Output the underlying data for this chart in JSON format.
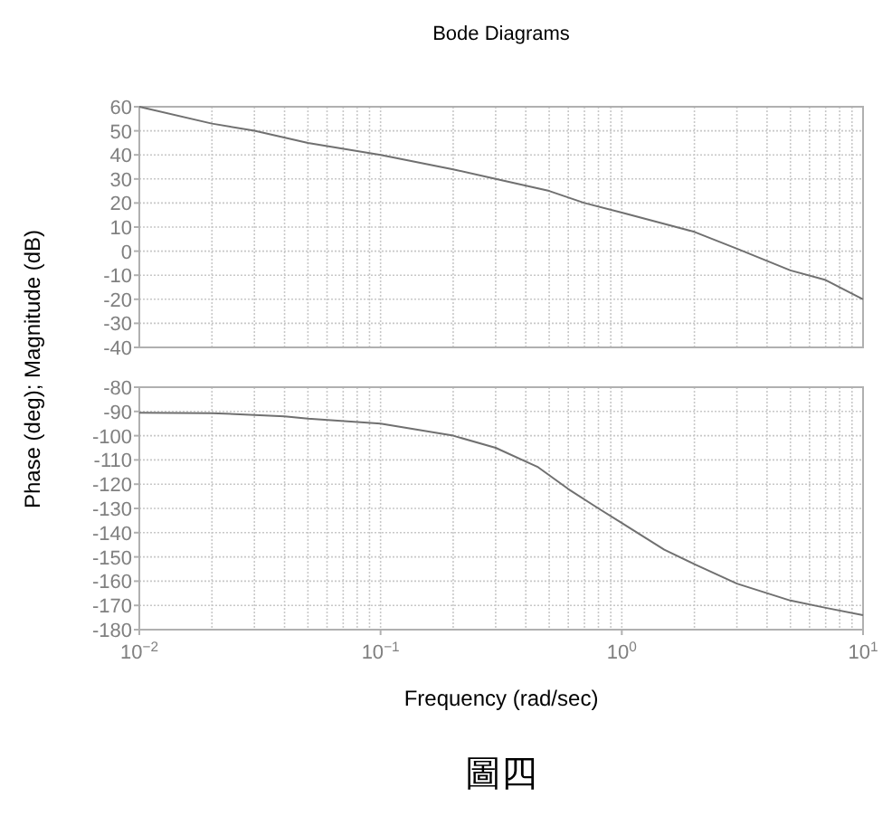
{
  "chart_data": [
    {
      "type": "line",
      "title": "Bode Diagrams",
      "ylabel": "Phase (deg); Magnitude (dB)",
      "log": "x",
      "xlim": [
        0.01,
        10
      ],
      "ylim": [
        -40,
        60
      ],
      "yticks": [
        -40,
        -30,
        -20,
        -10,
        0,
        10,
        20,
        30,
        40,
        50,
        60
      ],
      "tick_labels": "y",
      "grid": true,
      "series": [
        {
          "color": "#707070",
          "x": [
            0.01,
            0.02,
            0.03,
            0.05,
            0.1,
            0.2,
            0.3,
            0.5,
            0.7,
            1,
            2,
            3,
            5,
            7,
            10
          ],
          "values": [
            60,
            53,
            50,
            45,
            40,
            34,
            30,
            25,
            20,
            16,
            8,
            1,
            -8,
            -12,
            -20
          ]
        }
      ]
    },
    {
      "type": "line",
      "xlabel": "Frequency (rad/sec)",
      "annotations": [
        "圖四"
      ],
      "log": "x",
      "xlim": [
        0.01,
        10
      ],
      "xticks": [
        {
          "value": 0.01,
          "label": "10$^{−2}$"
        },
        {
          "value": 0.1,
          "label": "10$^{−1}$"
        },
        {
          "value": 1,
          "label": "10$^{0}$"
        },
        {
          "value": 10,
          "label": "10$^{1}$"
        }
      ],
      "ylim": [
        -180,
        -80
      ],
      "yticks": [
        -180,
        -170,
        -160,
        -150,
        -140,
        -130,
        -120,
        -110,
        -100,
        -90,
        -80
      ],
      "grid": true,
      "series": [
        {
          "color": "#707070",
          "x": [
            0.01,
            0.02,
            0.04,
            0.05,
            0.1,
            0.2,
            0.3,
            0.45,
            0.6,
            0.8,
            1,
            1.5,
            2,
            3,
            5,
            7,
            10
          ],
          "values": [
            -90.5,
            -90.7,
            -92,
            -93,
            -95,
            -100,
            -105,
            -113,
            -122,
            -130,
            -136,
            -147,
            -153,
            -161,
            -168,
            -171,
            -174
          ]
        }
      ]
    }
  ]
}
